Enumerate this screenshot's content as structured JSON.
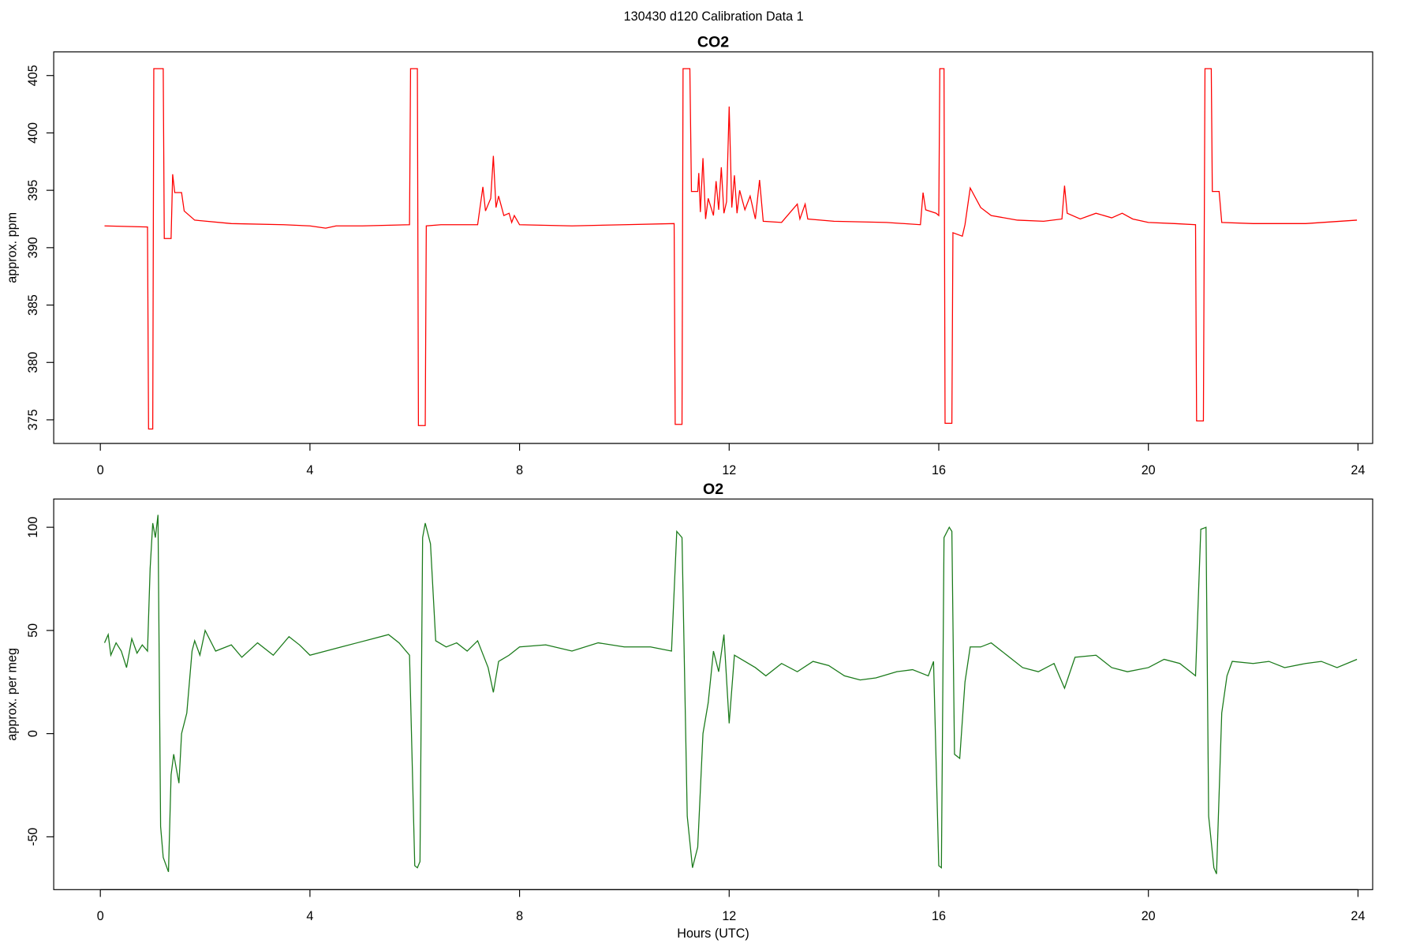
{
  "title": "130430   d120   Calibration Data 1",
  "chart_data": [
    {
      "type": "line",
      "title": "CO2",
      "ylabel": "approx. ppm",
      "color": "#ff0000",
      "xlim": [
        -0.89,
        24.28
      ],
      "ylim": [
        372.94,
        407.06
      ],
      "xticks": [
        0,
        4,
        8,
        12,
        16,
        20,
        24
      ],
      "yticks": [
        375,
        380,
        385,
        390,
        395,
        400,
        405
      ],
      "x": [
        0.08,
        0.9,
        0.92,
        1.0,
        1.02,
        1.2,
        1.22,
        1.35,
        1.38,
        1.42,
        1.55,
        1.6,
        1.8,
        2.5,
        3.5,
        4.0,
        4.3,
        4.5,
        5.0,
        5.9,
        5.92,
        6.05,
        6.07,
        6.2,
        6.22,
        6.5,
        7.2,
        7.3,
        7.35,
        7.45,
        7.5,
        7.55,
        7.6,
        7.7,
        7.8,
        7.85,
        7.9,
        8.0,
        9.0,
        10.0,
        10.95,
        10.97,
        11.1,
        11.12,
        11.25,
        11.28,
        11.4,
        11.42,
        11.45,
        11.5,
        11.55,
        11.6,
        11.7,
        11.75,
        11.8,
        11.85,
        11.9,
        11.95,
        12.0,
        12.05,
        12.1,
        12.15,
        12.2,
        12.3,
        12.4,
        12.5,
        12.58,
        12.65,
        13.0,
        13.3,
        13.35,
        13.45,
        13.5,
        14.0,
        15.0,
        15.65,
        15.7,
        15.75,
        15.95,
        16.0,
        16.02,
        16.1,
        16.12,
        16.25,
        16.27,
        16.45,
        16.5,
        16.6,
        16.8,
        17.0,
        17.5,
        18.0,
        18.35,
        18.4,
        18.45,
        18.7,
        19.0,
        19.3,
        19.5,
        19.7,
        20.0,
        20.5,
        20.9,
        20.92,
        21.05,
        21.08,
        21.2,
        21.22,
        21.35,
        21.4,
        22.0,
        23.0,
        23.98
      ],
      "values": [
        391.9,
        391.8,
        374.2,
        374.2,
        405.6,
        405.6,
        390.8,
        390.8,
        396.4,
        394.8,
        394.8,
        393.2,
        392.4,
        392.1,
        392.0,
        391.9,
        391.7,
        391.9,
        391.9,
        392.0,
        405.6,
        405.6,
        374.5,
        374.5,
        391.9,
        392.0,
        392.0,
        395.3,
        393.2,
        394.3,
        398.0,
        393.5,
        394.5,
        392.8,
        393.0,
        392.2,
        392.8,
        392.0,
        391.9,
        392.0,
        392.1,
        374.6,
        374.6,
        405.6,
        405.6,
        394.9,
        394.9,
        396.5,
        393.1,
        397.8,
        392.5,
        394.3,
        392.8,
        395.8,
        393.3,
        397.0,
        393.0,
        394.0,
        402.3,
        393.5,
        396.3,
        393.0,
        395.0,
        393.3,
        394.5,
        392.5,
        395.9,
        392.3,
        392.2,
        393.8,
        392.5,
        393.8,
        392.5,
        392.3,
        392.2,
        392.0,
        394.8,
        393.3,
        393.0,
        392.8,
        405.6,
        405.6,
        374.7,
        374.7,
        391.3,
        391.0,
        392.0,
        395.2,
        393.5,
        392.8,
        392.4,
        392.3,
        392.5,
        395.4,
        393.0,
        392.5,
        393.0,
        392.6,
        393.0,
        392.5,
        392.2,
        392.1,
        392.0,
        374.9,
        374.9,
        405.6,
        405.6,
        394.9,
        394.9,
        392.2,
        392.1,
        392.1,
        392.4
      ]
    },
    {
      "type": "line",
      "title": "O2",
      "ylabel": "approx. per meg",
      "xlabel": "Hours (UTC)",
      "color": "#1a7a1a",
      "xlim": [
        -0.89,
        24.28
      ],
      "ylim": [
        -75.6,
        113.7
      ],
      "xticks": [
        0,
        4,
        8,
        12,
        16,
        20,
        24
      ],
      "yticks": [
        -50,
        0,
        50,
        100
      ],
      "x": [
        0.08,
        0.15,
        0.2,
        0.3,
        0.4,
        0.5,
        0.6,
        0.7,
        0.8,
        0.9,
        0.95,
        1.0,
        1.05,
        1.1,
        1.15,
        1.2,
        1.3,
        1.35,
        1.4,
        1.5,
        1.55,
        1.65,
        1.75,
        1.8,
        1.9,
        2.0,
        2.2,
        2.5,
        2.7,
        3.0,
        3.3,
        3.6,
        3.8,
        4.0,
        4.3,
        4.6,
        4.9,
        5.2,
        5.5,
        5.7,
        5.9,
        6.0,
        6.05,
        6.1,
        6.15,
        6.2,
        6.3,
        6.4,
        6.6,
        6.8,
        7.0,
        7.2,
        7.4,
        7.5,
        7.6,
        7.8,
        8.0,
        8.5,
        9.0,
        9.5,
        10.0,
        10.5,
        10.9,
        11.0,
        11.1,
        11.2,
        11.3,
        11.4,
        11.5,
        11.6,
        11.7,
        11.8,
        11.9,
        12.0,
        12.1,
        12.3,
        12.5,
        12.7,
        13.0,
        13.3,
        13.6,
        13.9,
        14.2,
        14.5,
        14.8,
        15.2,
        15.5,
        15.8,
        15.9,
        16.0,
        16.05,
        16.1,
        16.2,
        16.25,
        16.3,
        16.4,
        16.5,
        16.6,
        16.8,
        17.0,
        17.3,
        17.6,
        17.9,
        18.2,
        18.4,
        18.6,
        19.0,
        19.3,
        19.6,
        20.0,
        20.3,
        20.6,
        20.9,
        21.0,
        21.1,
        21.15,
        21.25,
        21.3,
        21.4,
        21.5,
        21.6,
        22.0,
        22.3,
        22.6,
        23.0,
        23.3,
        23.6,
        23.98
      ],
      "values": [
        44,
        48,
        38,
        44,
        40,
        32,
        46,
        39,
        43,
        40,
        80,
        102,
        95,
        106,
        -45,
        -60,
        -67,
        -20,
        -10,
        -24,
        0,
        10,
        40,
        45,
        38,
        50,
        40,
        43,
        37,
        44,
        38,
        47,
        43,
        38,
        40,
        42,
        44,
        46,
        48,
        44,
        38,
        -64,
        -65,
        -62,
        95,
        102,
        92,
        45,
        42,
        44,
        40,
        45,
        32,
        20,
        35,
        38,
        42,
        43,
        40,
        44,
        42,
        42,
        40,
        98,
        95,
        -40,
        -65,
        -55,
        0,
        15,
        40,
        30,
        48,
        5,
        38,
        35,
        32,
        28,
        34,
        30,
        35,
        33,
        28,
        26,
        27,
        30,
        31,
        28,
        35,
        -64,
        -65,
        95,
        100,
        98,
        -10,
        -12,
        25,
        42,
        42,
        44,
        38,
        32,
        30,
        34,
        22,
        37,
        38,
        32,
        30,
        32,
        36,
        34,
        28,
        99,
        100,
        -40,
        -65,
        -68,
        10,
        28,
        35,
        34,
        35,
        32,
        34,
        35,
        32,
        36
      ]
    }
  ]
}
